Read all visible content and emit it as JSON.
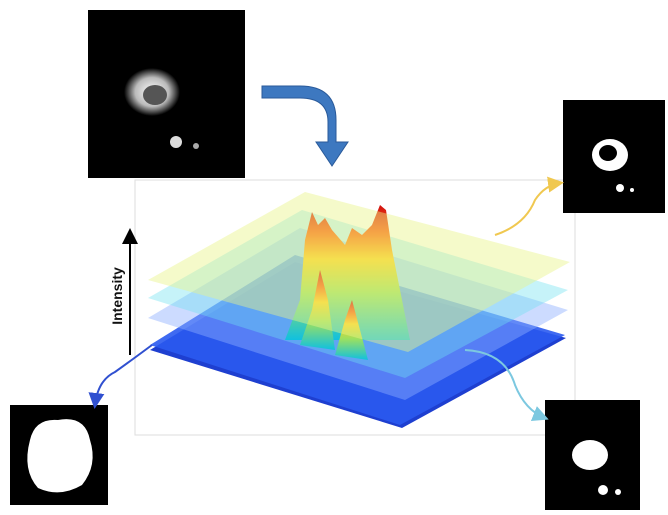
{
  "diagram": {
    "axis_label": "Intensity"
  }
}
